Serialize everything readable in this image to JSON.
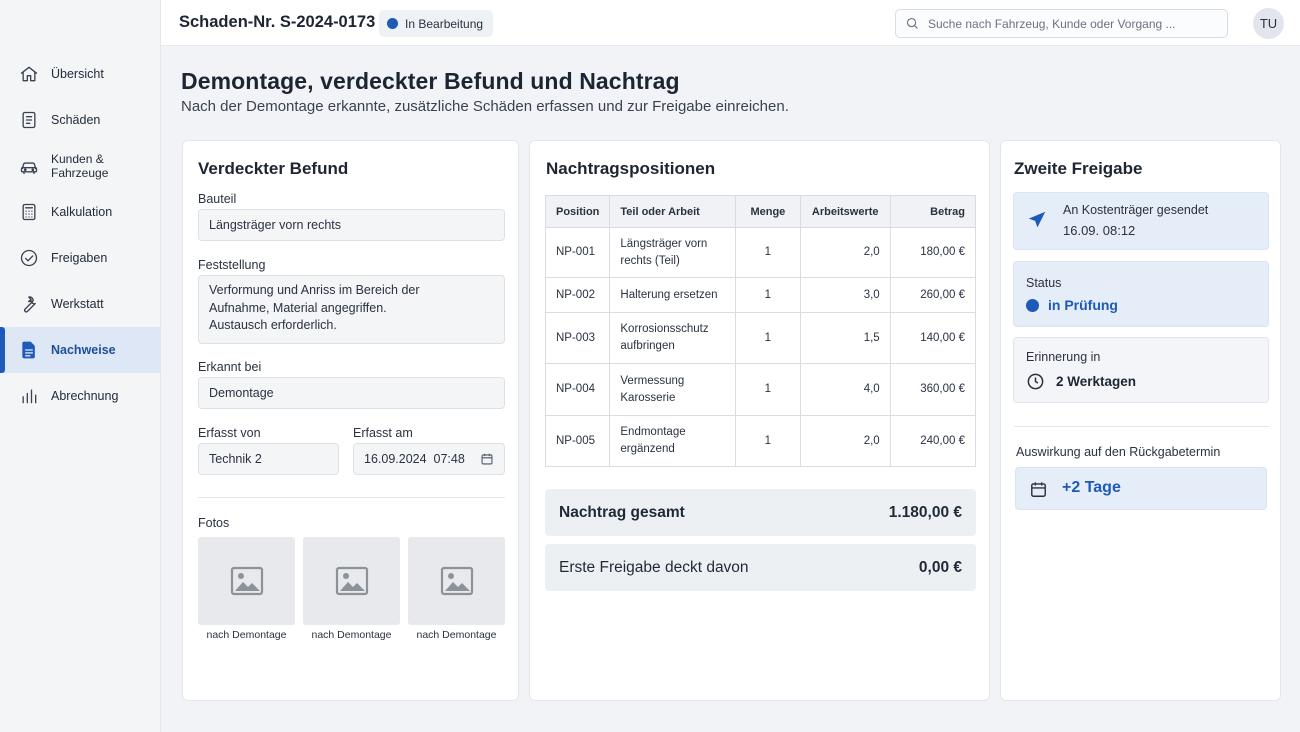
{
  "colors": {
    "accent": "#1e5bb8",
    "active_bg": "#dde7f6"
  },
  "sidebar": {
    "items": [
      {
        "label": "Übersicht",
        "icon": "home-icon",
        "active": false
      },
      {
        "label": "Schäden",
        "icon": "document-icon",
        "active": false
      },
      {
        "label": "Kunden & Fahrzeuge",
        "icon": "car-icon",
        "active": false
      },
      {
        "label": "Kalkulation",
        "icon": "calculator-icon",
        "active": false
      },
      {
        "label": "Freigaben",
        "icon": "check-circle-icon",
        "active": false
      },
      {
        "label": "Werkstatt",
        "icon": "wrench-icon",
        "active": false
      },
      {
        "label": "Nachweise",
        "icon": "file-icon",
        "active": true
      },
      {
        "label": "Abrechnung",
        "icon": "bar-chart-icon",
        "active": false
      }
    ]
  },
  "header": {
    "claim_title": "Schaden-Nr. S-2024-0173",
    "status": "In Bearbeitung",
    "search_placeholder": "Suche nach Fahrzeug, Kunde oder Vorgang ...",
    "avatar_initials": "TU"
  },
  "page": {
    "title": "Demontage, verdeckter Befund und Nachtrag",
    "subtitle": "Nach der Demontage erkannte, zusätzliche Schäden erfassen und zur Freigabe einreichen."
  },
  "befund": {
    "title": "Verdeckter Befund",
    "bauteil_label": "Bauteil",
    "bauteil_value": "Längsträger vorn rechts",
    "feststellung_label": "Feststellung",
    "feststellung_value": "Verformung und Anriss im Bereich der\nAufnahme, Material angegriffen.\nAustausch erforderlich.",
    "erkannt_label": "Erkannt bei",
    "erkannt_value": "Demontage",
    "erfasst_von_label": "Erfasst von",
    "erfasst_von_value": "Technik 2",
    "erfasst_am_label": "Erfasst am",
    "erfasst_am_value": "16.09.2024  07:48",
    "fotos_label": "Fotos",
    "photos": [
      {
        "caption": "nach Demontage"
      },
      {
        "caption": "nach Demontage"
      },
      {
        "caption": "nach Demontage"
      }
    ]
  },
  "nachtrag": {
    "title": "Nachtragspositionen",
    "columns": [
      "Position",
      "Teil oder Arbeit",
      "Menge",
      "Arbeitswerte",
      "Betrag"
    ],
    "rows": [
      {
        "position": "NP-001",
        "teil": "Längsträger vorn rechts (Teil)",
        "menge": "1",
        "aw": "2,0",
        "betrag": "180,00 €"
      },
      {
        "position": "NP-002",
        "teil": "Halterung ersetzen",
        "menge": "1",
        "aw": "3,0",
        "betrag": "260,00 €"
      },
      {
        "position": "NP-003",
        "teil": "Korrosionsschutz aufbringen",
        "menge": "1",
        "aw": "1,5",
        "betrag": "140,00 €"
      },
      {
        "position": "NP-004",
        "teil": "Vermessung Karosserie",
        "menge": "1",
        "aw": "4,0",
        "betrag": "360,00 €"
      },
      {
        "position": "NP-005",
        "teil": "Endmontage ergänzend",
        "menge": "1",
        "aw": "2,0",
        "betrag": "240,00 €"
      }
    ],
    "total_label": "Nachtrag gesamt",
    "total_value": "1.180,00 €",
    "covered_label": "Erste Freigabe deckt davon",
    "covered_value": "0,00 €"
  },
  "freigabe": {
    "title": "Zweite Freigabe",
    "sent_text": "An Kostenträger gesendet",
    "sent_time": "16.09. 08:12",
    "status_label": "Status",
    "status_value": "in Prüfung",
    "reminder_label": "Erinnerung in",
    "reminder_value": "2 Werktagen",
    "impact_label": "Auswirkung auf den Rückgabetermin",
    "impact_value": "+2 Tage"
  }
}
